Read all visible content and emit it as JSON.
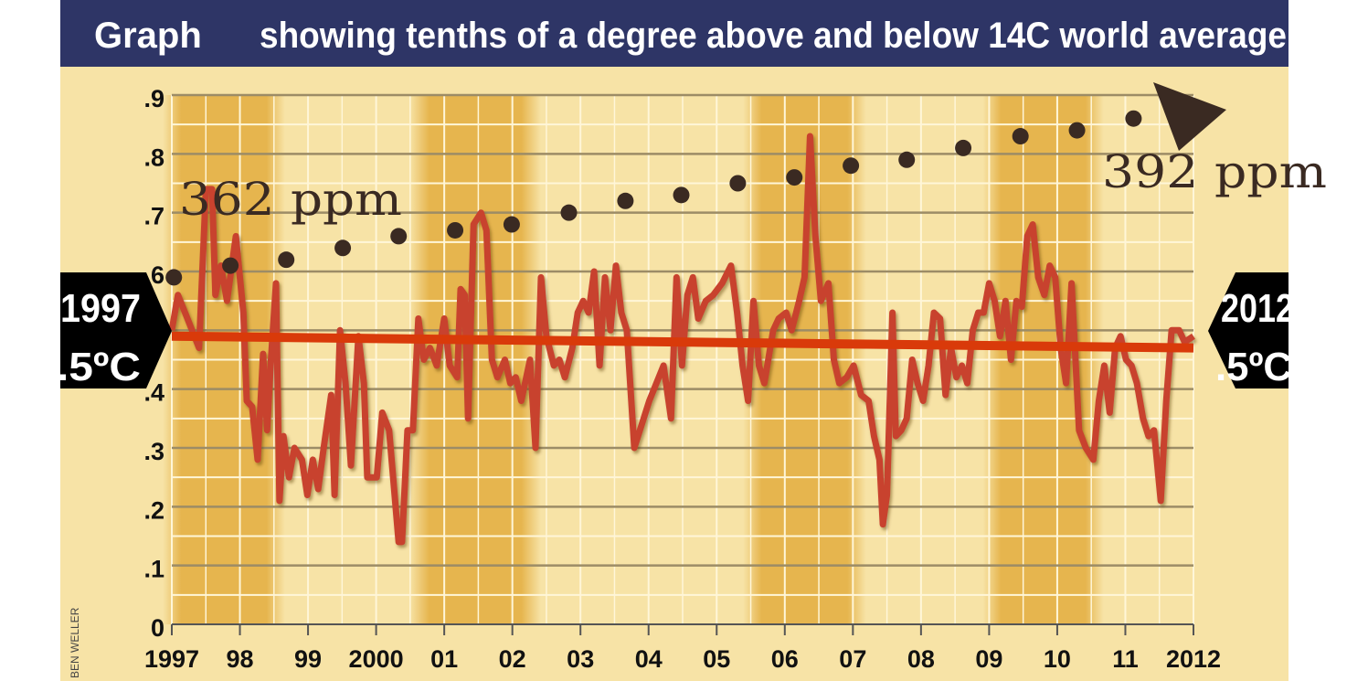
{
  "chart_data": {
    "type": "line",
    "title_left": "Graph",
    "title": "showing tenths of a degree above and below 14C world average",
    "credit": "BEN WELLER",
    "xlabel": "",
    "ylabel": "",
    "xlim": [
      1997,
      2012
    ],
    "ylim": [
      0,
      0.9
    ],
    "x_ticks": [
      {
        "value": 1997,
        "label": "1997"
      },
      {
        "value": 1998,
        "label": "98"
      },
      {
        "value": 1999,
        "label": "99"
      },
      {
        "value": 2000,
        "label": "2000"
      },
      {
        "value": 2001,
        "label": "01"
      },
      {
        "value": 2002,
        "label": "02"
      },
      {
        "value": 2003,
        "label": "03"
      },
      {
        "value": 2004,
        "label": "04"
      },
      {
        "value": 2005,
        "label": "05"
      },
      {
        "value": 2006,
        "label": "06"
      },
      {
        "value": 2007,
        "label": "07"
      },
      {
        "value": 2008,
        "label": "08"
      },
      {
        "value": 2009,
        "label": "09"
      },
      {
        "value": 2010,
        "label": "10"
      },
      {
        "value": 2011,
        "label": "11"
      },
      {
        "value": 2012,
        "label": "2012"
      }
    ],
    "y_ticks": [
      {
        "value": 0,
        "label": "0"
      },
      {
        "value": 0.1,
        "label": ".1"
      },
      {
        "value": 0.2,
        "label": ".2"
      },
      {
        "value": 0.3,
        "label": ".3"
      },
      {
        "value": 0.4,
        "label": ".4"
      },
      {
        "value": 0.5,
        "label": ".5"
      },
      {
        "value": 0.6,
        "label": ".6"
      },
      {
        "value": 0.7,
        "label": ".7"
      },
      {
        "value": 0.8,
        "label": ".8"
      },
      {
        "value": 0.9,
        "label": ".9"
      }
    ],
    "grid": true,
    "shaded_bands": [
      [
        1997.03,
        1998.5
      ],
      [
        2000.65,
        2002.26
      ],
      [
        2005.55,
        2007.03
      ],
      [
        2009.07,
        2010.52
      ]
    ],
    "temperature_series": {
      "color": "#c8432f",
      "x": [
        1997.0,
        1997.09,
        1997.23,
        1997.4,
        1997.5,
        1997.59,
        1997.64,
        1997.72,
        1997.81,
        1997.94,
        1998.05,
        1998.1,
        1998.18,
        1998.26,
        1998.34,
        1998.4,
        1998.45,
        1998.53,
        1998.58,
        1998.64,
        1998.72,
        1998.8,
        1998.91,
        1998.99,
        1999.07,
        1999.15,
        1999.23,
        1999.34,
        1999.39,
        1999.47,
        1999.55,
        1999.63,
        1999.74,
        1999.82,
        1999.87,
        2000.01,
        2000.09,
        2000.19,
        2000.33,
        2000.38,
        2000.46,
        2000.54,
        2000.62,
        2000.7,
        2000.79,
        2000.89,
        2001.0,
        2001.08,
        2001.19,
        2001.24,
        2001.3,
        2001.35,
        2001.43,
        2001.54,
        2001.62,
        2001.7,
        2001.78,
        2001.89,
        2001.97,
        2002.05,
        2002.13,
        2002.26,
        2002.34,
        2002.42,
        2002.5,
        2002.61,
        2002.69,
        2002.77,
        2002.88,
        2002.96,
        2003.04,
        2003.12,
        2003.2,
        2003.28,
        2003.36,
        2003.44,
        2003.52,
        2003.6,
        2003.68,
        2003.79,
        2004.01,
        2004.22,
        2004.33,
        2004.41,
        2004.49,
        2004.57,
        2004.65,
        2004.73,
        2004.84,
        2004.95,
        2005.08,
        2005.21,
        2005.3,
        2005.38,
        2005.46,
        2005.54,
        2005.62,
        2005.7,
        2005.83,
        2005.91,
        2006.02,
        2006.1,
        2006.21,
        2006.29,
        2006.37,
        2006.45,
        2006.53,
        2006.64,
        2006.72,
        2006.8,
        2006.91,
        2007.01,
        2007.12,
        2007.23,
        2007.31,
        2007.39,
        2007.44,
        2007.5,
        2007.58,
        2007.63,
        2007.71,
        2007.79,
        2007.87,
        2007.95,
        2008.03,
        2008.11,
        2008.19,
        2008.28,
        2008.36,
        2008.44,
        2008.52,
        2008.6,
        2008.68,
        2008.76,
        2008.84,
        2008.92,
        2009.0,
        2009.08,
        2009.16,
        2009.24,
        2009.32,
        2009.4,
        2009.48,
        2009.56,
        2009.64,
        2009.72,
        2009.81,
        2009.89,
        2009.97,
        2010.05,
        2010.13,
        2010.21,
        2010.32,
        2010.42,
        2010.53,
        2010.61,
        2010.69,
        2010.77,
        2010.85,
        2010.93,
        2011.01,
        2011.09,
        2011.17,
        2011.26,
        2011.34,
        2011.42,
        2011.52,
        2011.6,
        2011.68,
        2011.79,
        2011.87,
        2012.0
      ],
      "y": [
        0.5,
        0.56,
        0.52,
        0.47,
        0.74,
        0.74,
        0.56,
        0.61,
        0.55,
        0.66,
        0.53,
        0.38,
        0.37,
        0.28,
        0.46,
        0.33,
        0.44,
        0.58,
        0.21,
        0.32,
        0.25,
        0.3,
        0.28,
        0.22,
        0.28,
        0.23,
        0.3,
        0.39,
        0.22,
        0.5,
        0.41,
        0.27,
        0.49,
        0.41,
        0.25,
        0.25,
        0.36,
        0.33,
        0.14,
        0.14,
        0.33,
        0.33,
        0.52,
        0.45,
        0.47,
        0.44,
        0.52,
        0.44,
        0.42,
        0.57,
        0.56,
        0.35,
        0.68,
        0.7,
        0.67,
        0.45,
        0.42,
        0.45,
        0.41,
        0.42,
        0.38,
        0.45,
        0.3,
        0.59,
        0.49,
        0.44,
        0.45,
        0.42,
        0.47,
        0.53,
        0.55,
        0.53,
        0.6,
        0.44,
        0.59,
        0.5,
        0.61,
        0.53,
        0.5,
        0.3,
        0.38,
        0.44,
        0.35,
        0.59,
        0.44,
        0.56,
        0.59,
        0.52,
        0.55,
        0.56,
        0.58,
        0.61,
        0.53,
        0.44,
        0.38,
        0.55,
        0.44,
        0.41,
        0.5,
        0.52,
        0.53,
        0.5,
        0.55,
        0.59,
        0.83,
        0.66,
        0.55,
        0.58,
        0.45,
        0.41,
        0.42,
        0.44,
        0.39,
        0.38,
        0.32,
        0.28,
        0.17,
        0.22,
        0.53,
        0.32,
        0.33,
        0.35,
        0.45,
        0.41,
        0.38,
        0.44,
        0.53,
        0.52,
        0.39,
        0.47,
        0.42,
        0.44,
        0.41,
        0.5,
        0.53,
        0.53,
        0.58,
        0.55,
        0.49,
        0.55,
        0.45,
        0.55,
        0.54,
        0.66,
        0.68,
        0.59,
        0.56,
        0.61,
        0.59,
        0.47,
        0.41,
        0.58,
        0.33,
        0.3,
        0.28,
        0.38,
        0.44,
        0.36,
        0.47,
        0.49,
        0.45,
        0.44,
        0.41,
        0.35,
        0.32,
        0.33,
        0.21,
        0.38,
        0.5,
        0.5,
        0.48,
        0.49
      ]
    },
    "trend_line": {
      "color": "#d93a0a",
      "x": [
        1997,
        2012
      ],
      "y": [
        0.49,
        0.47
      ]
    },
    "co2_dots": {
      "color": "#3a2a22",
      "x": [
        1997.03,
        1997.86,
        1998.68,
        1999.51,
        2000.33,
        2001.16,
        2001.99,
        2002.83,
        2003.66,
        2004.48,
        2005.31,
        2006.14,
        2006.97,
        2007.79,
        2008.62,
        2009.46,
        2010.29,
        2011.12
      ],
      "y": [
        0.59,
        0.61,
        0.62,
        0.64,
        0.66,
        0.67,
        0.68,
        0.7,
        0.72,
        0.73,
        0.75,
        0.76,
        0.78,
        0.79,
        0.81,
        0.83,
        0.84,
        0.86
      ]
    },
    "annotations": {
      "start_ppm": "362 ppm",
      "end_ppm": "392 ppm",
      "start_year": "1997",
      "start_temp": ".5ºC",
      "end_year": "2012",
      "end_temp": ".5ºC"
    },
    "colors": {
      "title_bar": "#2e3566",
      "background": "#f7e3a6",
      "band": "#e6b54e",
      "badge": "#000000"
    }
  }
}
